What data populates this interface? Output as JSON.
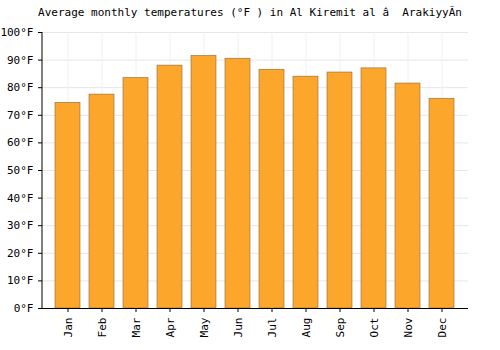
{
  "chart_data": {
    "type": "bar",
    "title": "Average monthly temperatures (°F ) in Al Kiremit al â  ArakiyyÃ­n",
    "categories": [
      "Jan",
      "Feb",
      "Mar",
      "Apr",
      "May",
      "Jun",
      "Jul",
      "Aug",
      "Sep",
      "Oct",
      "Nov",
      "Dec"
    ],
    "values": [
      74.5,
      77.5,
      83.5,
      88,
      91.5,
      90.5,
      86.5,
      84,
      85.5,
      87,
      81.5,
      76
    ],
    "color": "#fca62c",
    "ylim": [
      0,
      100
    ],
    "yticks": [
      {
        "value": 0,
        "label": "0°F"
      },
      {
        "value": 10,
        "label": "10°F"
      },
      {
        "value": 20,
        "label": "20°F"
      },
      {
        "value": 30,
        "label": "30°F"
      },
      {
        "value": 40,
        "label": "40°F"
      },
      {
        "value": 50,
        "label": "50°F"
      },
      {
        "value": 60,
        "label": "60°F"
      },
      {
        "value": 70,
        "label": "70°F"
      },
      {
        "value": 80,
        "label": "80°F"
      },
      {
        "value": 90,
        "label": "90°F"
      },
      {
        "value": 100,
        "label": "100°F"
      }
    ],
    "grid": true
  }
}
